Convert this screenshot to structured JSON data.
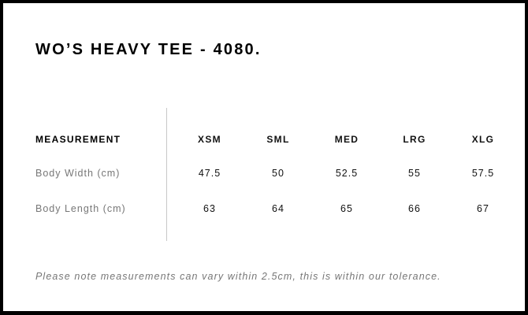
{
  "title": "WO’S HEAVY TEE - 4080.",
  "table": {
    "headers": [
      "MEASUREMENT",
      "XSM",
      "SML",
      "MED",
      "LRG",
      "XLG"
    ],
    "rows": [
      {
        "label": "Body Width (cm)",
        "values": [
          "47.5",
          "50",
          "52.5",
          "55",
          "57.5"
        ]
      },
      {
        "label": "Body Length (cm)",
        "values": [
          "63",
          "64",
          "65",
          "66",
          "67"
        ]
      }
    ]
  },
  "note": "Please note measurements can vary within 2.5cm, this is within our tolerance."
}
